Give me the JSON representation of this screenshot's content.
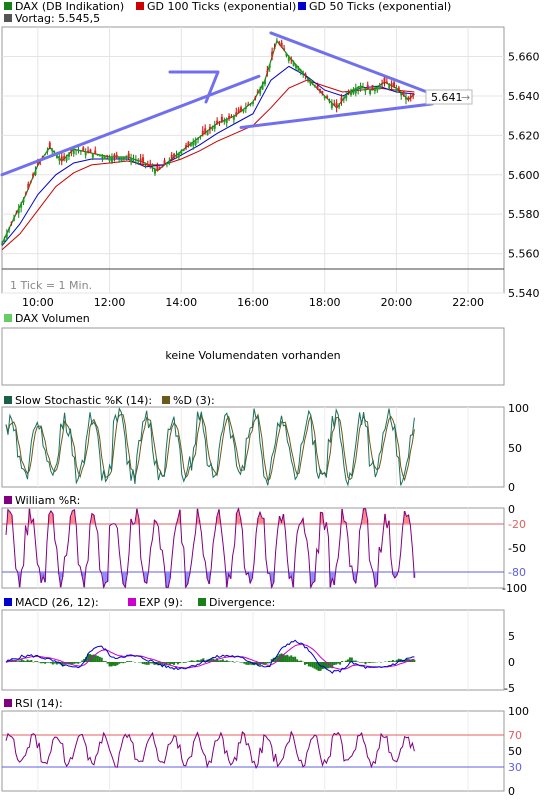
{
  "main_panel": {
    "legend": [
      {
        "label": "DAX (DB Indikation)",
        "color": "#1a7f1a"
      },
      {
        "label": "GD 100 Ticks (exponential)",
        "color": "#cc0000"
      },
      {
        "label": "GD 50 Ticks (exponential)",
        "color": "#0000cc"
      }
    ],
    "prev_close_label": "Vortag: 5.545,5",
    "prev_close_color": "#555555",
    "tick_note": "1 Tick = 1 Min.",
    "last_price_label": "5.641",
    "y_ticks": [
      "5.660",
      "5.640",
      "5.620",
      "5.600",
      "5.580",
      "5.560",
      "5.540"
    ],
    "x_ticks": [
      "10:00",
      "12:00",
      "14:00",
      "16:00",
      "18:00",
      "20:00",
      "22:00"
    ]
  },
  "volume_panel": {
    "legend": "DAX Volumen",
    "legend_color": "#66cc66",
    "message": "keine Volumendaten vorhanden"
  },
  "stochastic_panel": {
    "legend_k": "Slow Stochastic %K (14):",
    "legend_k_color": "#1a5f4a",
    "legend_d": "%D (3):",
    "legend_d_color": "#6b5a1a",
    "y_ticks": [
      "100",
      "50",
      "0"
    ]
  },
  "williams_panel": {
    "legend": "William %R:",
    "legend_color": "#800080",
    "y_ticks": [
      "0",
      "-50",
      "-100"
    ],
    "upper_label": "-20",
    "lower_label": "-80"
  },
  "macd_panel": {
    "legend_macd": "MACD (26, 12):",
    "legend_macd_color": "#0000cc",
    "legend_exp": "EXP (9):",
    "legend_exp_color": "#cc00cc",
    "legend_div": "Divergence:",
    "legend_div_color": "#1a7f1a",
    "y_ticks": [
      "5",
      "0",
      "-5"
    ]
  },
  "rsi_panel": {
    "legend": "RSI (14):",
    "legend_color": "#800080",
    "y_ticks": [
      "100",
      "70",
      "50",
      "30",
      "0"
    ],
    "upper_label": "70",
    "lower_label": "30"
  },
  "chart_data": {
    "type": "line",
    "title": "DAX (DB Indikation)",
    "x_unit": "time of day",
    "y_range": [
      5540,
      5675
    ],
    "x_range": [
      "09:00",
      "23:00"
    ],
    "previous_close": 5545.5,
    "last_price": 5641,
    "series": [
      {
        "name": "DAX (DB Indikation)",
        "color": "#1a7f1a",
        "points": [
          [
            "09:00",
            5565
          ],
          [
            "09:20",
            5578
          ],
          [
            "09:40",
            5590
          ],
          [
            "10:00",
            5605
          ],
          [
            "10:20",
            5614
          ],
          [
            "10:40",
            5607
          ],
          [
            "11:00",
            5613
          ],
          [
            "11:30",
            5611
          ],
          [
            "12:00",
            5609
          ],
          [
            "12:30",
            5609
          ],
          [
            "13:00",
            5606
          ],
          [
            "13:20",
            5602
          ],
          [
            "13:40",
            5607
          ],
          [
            "14:00",
            5612
          ],
          [
            "14:30",
            5619
          ],
          [
            "15:00",
            5626
          ],
          [
            "15:30",
            5630
          ],
          [
            "16:00",
            5637
          ],
          [
            "16:20",
            5648
          ],
          [
            "16:40",
            5668
          ],
          [
            "17:00",
            5660
          ],
          [
            "17:20",
            5653
          ],
          [
            "17:40",
            5646
          ],
          [
            "18:00",
            5640
          ],
          [
            "18:20",
            5634
          ],
          [
            "18:40",
            5642
          ],
          [
            "19:00",
            5645
          ],
          [
            "19:20",
            5643
          ],
          [
            "19:40",
            5647
          ],
          [
            "20:00",
            5644
          ],
          [
            "20:20",
            5638
          ],
          [
            "20:30",
            5641
          ]
        ]
      },
      {
        "name": "GD 100 Ticks (exponential)",
        "color": "#cc0000",
        "points": [
          [
            "09:00",
            5562
          ],
          [
            "09:30",
            5570
          ],
          [
            "10:00",
            5582
          ],
          [
            "10:30",
            5594
          ],
          [
            "11:00",
            5601
          ],
          [
            "11:30",
            5605
          ],
          [
            "12:00",
            5606
          ],
          [
            "12:30",
            5607
          ],
          [
            "13:00",
            5605
          ],
          [
            "13:30",
            5605
          ],
          [
            "14:00",
            5608
          ],
          [
            "14:30",
            5612
          ],
          [
            "15:00",
            5617
          ],
          [
            "15:30",
            5621
          ],
          [
            "16:00",
            5625
          ],
          [
            "16:30",
            5634
          ],
          [
            "17:00",
            5644
          ],
          [
            "17:30",
            5648
          ],
          [
            "18:00",
            5645
          ],
          [
            "18:30",
            5642
          ],
          [
            "19:00",
            5643
          ],
          [
            "19:30",
            5644
          ],
          [
            "20:00",
            5643
          ],
          [
            "20:30",
            5642
          ]
        ]
      },
      {
        "name": "GD 50 Ticks (exponential)",
        "color": "#0000cc",
        "points": [
          [
            "09:00",
            5564
          ],
          [
            "09:30",
            5575
          ],
          [
            "10:00",
            5590
          ],
          [
            "10:30",
            5600
          ],
          [
            "11:00",
            5606
          ],
          [
            "11:30",
            5608
          ],
          [
            "12:00",
            5608
          ],
          [
            "12:30",
            5608
          ],
          [
            "13:00",
            5604
          ],
          [
            "13:30",
            5605
          ],
          [
            "14:00",
            5610
          ],
          [
            "14:30",
            5615
          ],
          [
            "15:00",
            5621
          ],
          [
            "15:30",
            5626
          ],
          [
            "16:00",
            5631
          ],
          [
            "16:30",
            5648
          ],
          [
            "17:00",
            5655
          ],
          [
            "17:30",
            5650
          ],
          [
            "18:00",
            5643
          ],
          [
            "18:30",
            5640
          ],
          [
            "19:00",
            5644
          ],
          [
            "19:30",
            5645
          ],
          [
            "20:00",
            5642
          ],
          [
            "20:30",
            5641
          ]
        ]
      }
    ],
    "annotations": [
      {
        "type": "trend-line",
        "from": [
          "09:00",
          5600
        ],
        "to": [
          "16:10",
          5650
        ]
      },
      {
        "type": "trend-line",
        "from": [
          "16:30",
          5672
        ],
        "to": [
          "21:00",
          5641
        ]
      },
      {
        "type": "trend-line",
        "from": [
          "15:40",
          5624
        ],
        "to": [
          "21:00",
          5636
        ]
      }
    ],
    "indicators": [
      {
        "name": "Slow Stochastic %K (14)",
        "range": [
          0,
          100
        ]
      },
      {
        "name": "%D (3)",
        "range": [
          0,
          100
        ]
      },
      {
        "name": "William %R",
        "range": [
          -100,
          0
        ],
        "levels": [
          -20,
          -80
        ]
      },
      {
        "name": "MACD (26, 12)",
        "range": [
          -5,
          5
        ]
      },
      {
        "name": "EXP (9)",
        "range": [
          -5,
          5
        ]
      },
      {
        "name": "Divergence",
        "range": [
          -5,
          5
        ]
      },
      {
        "name": "RSI (14)",
        "range": [
          0,
          100
        ],
        "levels": [
          70,
          30
        ]
      }
    ]
  }
}
